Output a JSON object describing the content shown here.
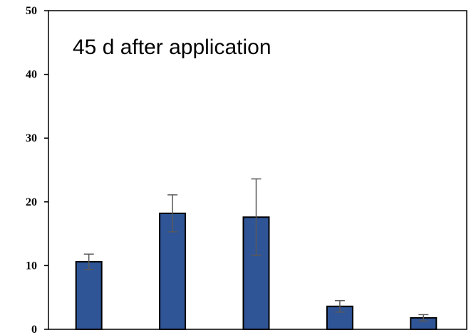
{
  "chart_data": {
    "type": "bar",
    "title": "45 d after application",
    "xlabel": "",
    "ylabel": "",
    "ylim": [
      0,
      50
    ],
    "yticks": [
      0,
      10,
      20,
      30,
      40,
      50
    ],
    "categories": [
      "",
      "",
      "",
      "",
      ""
    ],
    "values": [
      10.6,
      18.2,
      17.6,
      3.6,
      1.8
    ],
    "errors": [
      1.2,
      2.9,
      6.0,
      0.9,
      0.5
    ],
    "grid": false,
    "legend": "none",
    "colors": {
      "bar": "#2f5597",
      "error_bar": "#595959",
      "axis": "#000000"
    }
  }
}
